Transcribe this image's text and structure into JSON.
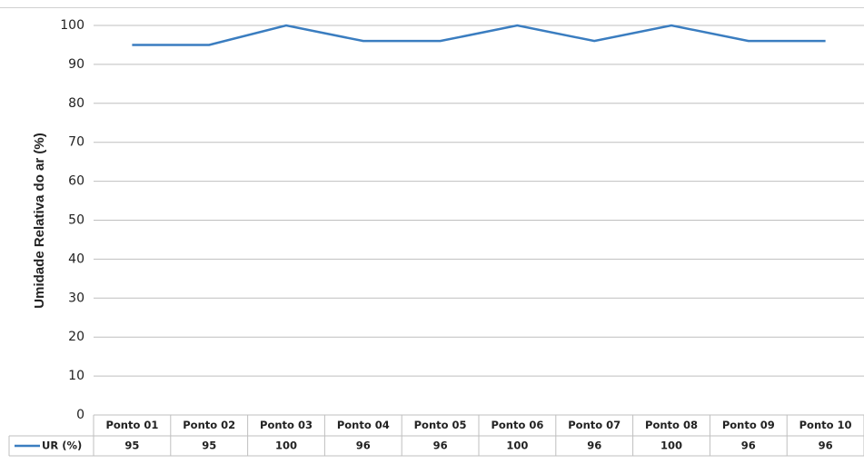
{
  "chart_data": {
    "type": "line",
    "y_axis_label": "Umidade Relativa do ar (%)",
    "categories": [
      "Ponto 01",
      "Ponto 02",
      "Ponto 03",
      "Ponto 04",
      "Ponto 05",
      "Ponto 06",
      "Ponto 07",
      "Ponto 08",
      "Ponto 09",
      "Ponto 10"
    ],
    "series": [
      {
        "name": "UR (%)",
        "color": "#3a7dc0",
        "values": [
          95,
          95,
          100,
          96,
          96,
          100,
          96,
          100,
          96,
          96
        ]
      }
    ],
    "ylim": [
      0,
      100
    ],
    "yticks": [
      0,
      10,
      20,
      30,
      40,
      50,
      60,
      70,
      80,
      90,
      100
    ],
    "grid": true,
    "data_table": true
  }
}
